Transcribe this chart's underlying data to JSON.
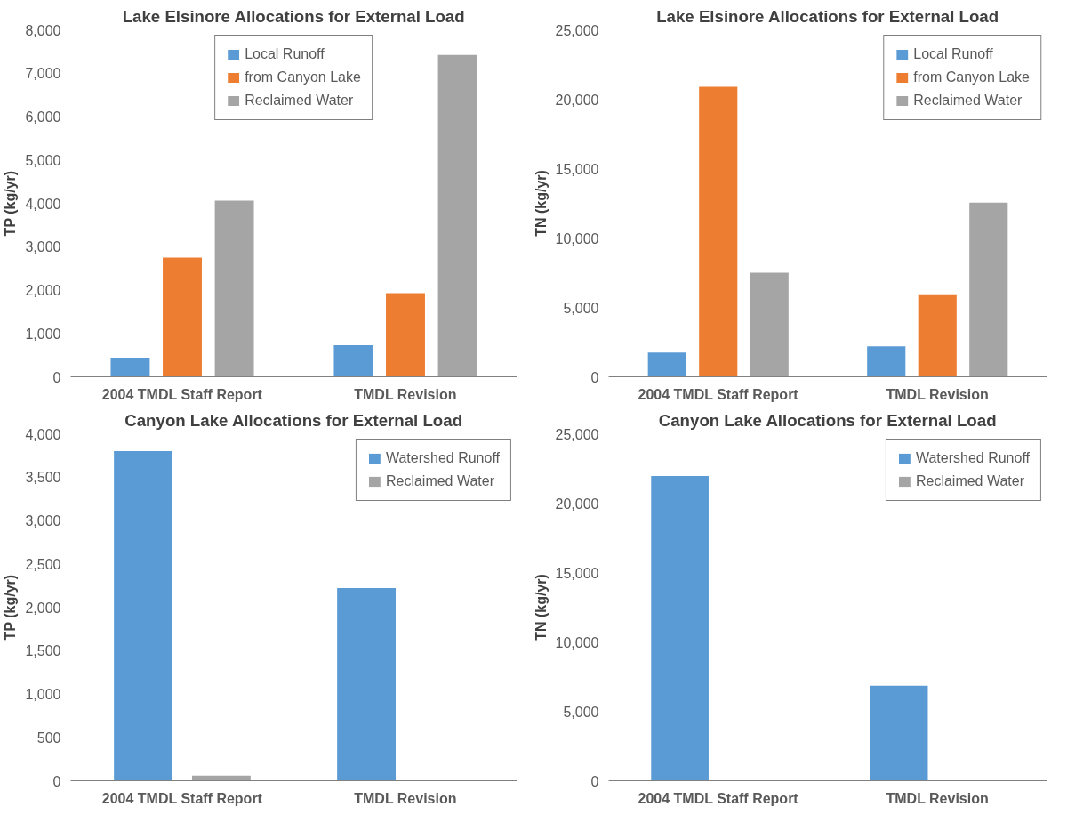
{
  "chart_data": [
    {
      "type": "bar",
      "title": "Lake Elsinore Allocations for External Load",
      "ylabel": "TP (kg/yr)",
      "categories": [
        "2004 TMDL Staff Report",
        "TMDL Revision"
      ],
      "ylim": [
        0,
        8000
      ],
      "yticks": [
        {
          "value": 0,
          "label": "0"
        },
        {
          "value": 1000,
          "label": "1,000"
        },
        {
          "value": 2000,
          "label": "2,000"
        },
        {
          "value": 3000,
          "label": "3,000"
        },
        {
          "value": 4000,
          "label": "4,000"
        },
        {
          "value": 5000,
          "label": "5,000"
        },
        {
          "value": 6000,
          "label": "6,000"
        },
        {
          "value": 7000,
          "label": "7,000"
        },
        {
          "value": 8000,
          "label": "8,000"
        }
      ],
      "grid": false,
      "legend": "top",
      "series": [
        {
          "name": "Local Runoff",
          "color": "#5b9bd5",
          "values": [
            440,
            730
          ]
        },
        {
          "name": "from Canyon Lake",
          "color": "#ed7d31",
          "values": [
            2750,
            1930
          ]
        },
        {
          "name": "Reclaimed Water",
          "color": "#a5a5a5",
          "values": [
            4060,
            7420
          ]
        }
      ]
    },
    {
      "type": "bar",
      "title": "Lake Elsinore Allocations for External Load",
      "ylabel": "TN (kg/yr)",
      "categories": [
        "2004 TMDL Staff Report",
        "TMDL Revision"
      ],
      "ylim": [
        0,
        25000
      ],
      "yticks": [
        {
          "value": 0,
          "label": "0"
        },
        {
          "value": 5000,
          "label": "5,000"
        },
        {
          "value": 10000,
          "label": "10,000"
        },
        {
          "value": 15000,
          "label": "15,000"
        },
        {
          "value": 20000,
          "label": "20,000"
        },
        {
          "value": 25000,
          "label": "25,000"
        }
      ],
      "grid": false,
      "legend": "top right",
      "series": [
        {
          "name": "Local Runoff",
          "color": "#5b9bd5",
          "values": [
            1750,
            2200
          ]
        },
        {
          "name": "from Canyon Lake",
          "color": "#ed7d31",
          "values": [
            20900,
            5950
          ]
        },
        {
          "name": "Reclaimed Water",
          "color": "#a5a5a5",
          "values": [
            7500,
            12550
          ]
        }
      ]
    },
    {
      "type": "bar",
      "title": "Canyon Lake Allocations for External Load",
      "ylabel": "TP (kg/yr)",
      "categories": [
        "2004 TMDL Staff Report",
        "TMDL Revision"
      ],
      "ylim": [
        0,
        4000
      ],
      "yticks": [
        {
          "value": 0,
          "label": "0"
        },
        {
          "value": 500,
          "label": "500"
        },
        {
          "value": 1000,
          "label": "1,000"
        },
        {
          "value": 1500,
          "label": "1,500"
        },
        {
          "value": 2000,
          "label": "2,000"
        },
        {
          "value": 2500,
          "label": "2,500"
        },
        {
          "value": 3000,
          "label": "3,000"
        },
        {
          "value": 3500,
          "label": "3,500"
        },
        {
          "value": 4000,
          "label": "4,000"
        }
      ],
      "grid": false,
      "legend": "top right",
      "series": [
        {
          "name": "Watershed Runoff",
          "color": "#5b9bd5",
          "values": [
            3800,
            2220
          ]
        },
        {
          "name": "Reclaimed Water",
          "color": "#a5a5a5",
          "values": [
            60,
            0
          ]
        }
      ]
    },
    {
      "type": "bar",
      "title": "Canyon Lake Allocations for External Load",
      "ylabel": "TN (kg/yr)",
      "categories": [
        "2004 TMDL Staff Report",
        "TMDL Revision"
      ],
      "ylim": [
        0,
        25000
      ],
      "yticks": [
        {
          "value": 0,
          "label": "0"
        },
        {
          "value": 5000,
          "label": "5,000"
        },
        {
          "value": 10000,
          "label": "10,000"
        },
        {
          "value": 15000,
          "label": "15,000"
        },
        {
          "value": 20000,
          "label": "20,000"
        },
        {
          "value": 25000,
          "label": "25,000"
        }
      ],
      "grid": false,
      "legend": "top right",
      "series": [
        {
          "name": "Watershed Runoff",
          "color": "#5b9bd5",
          "values": [
            21950,
            6850
          ]
        },
        {
          "name": "Reclaimed Water",
          "color": "#a5a5a5",
          "values": [
            0,
            0
          ]
        }
      ]
    }
  ]
}
